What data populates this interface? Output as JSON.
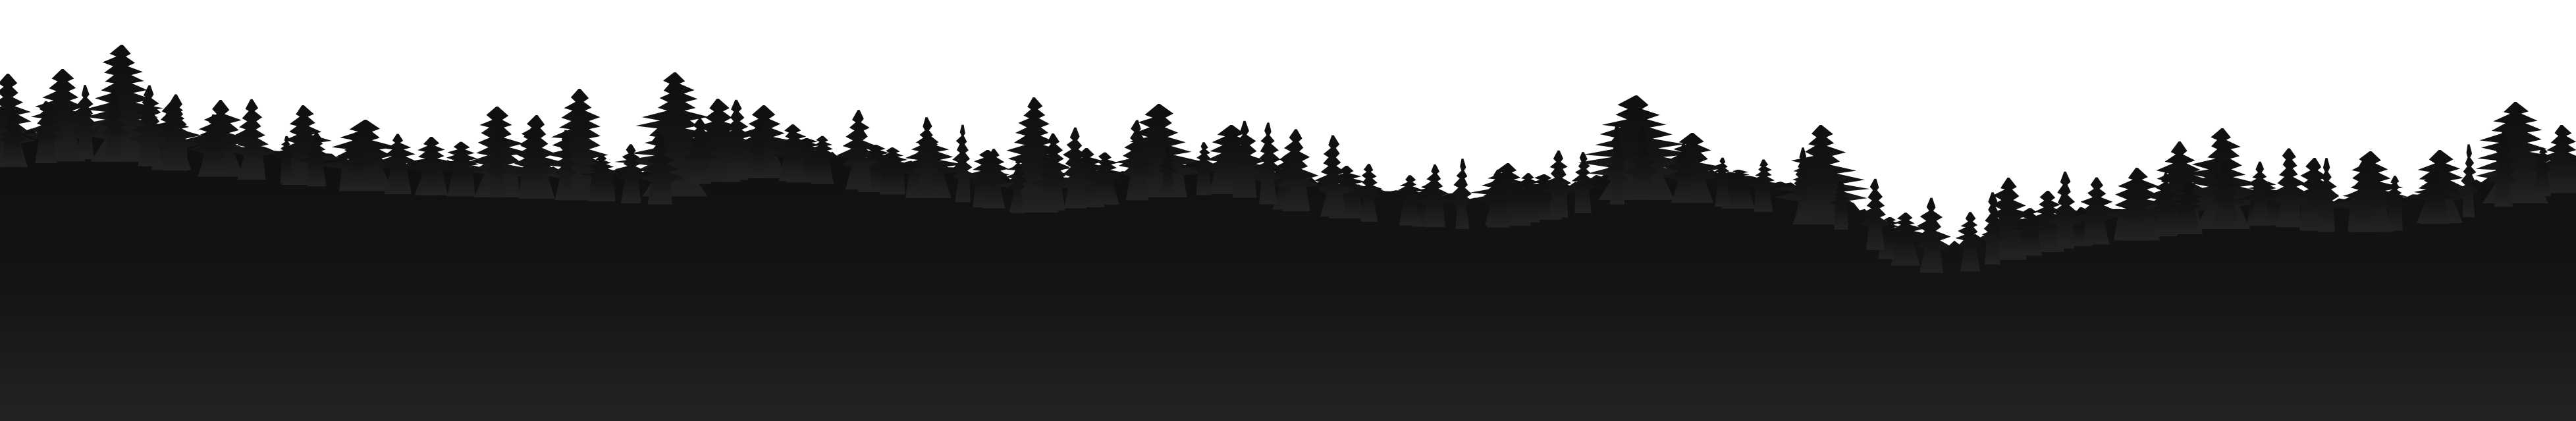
{
  "scene": {
    "subject": "forest-treeline-silhouette",
    "colors": {
      "sky": "#ffffff",
      "forest_top": "#0f0f10",
      "forest_bottom": "#232323"
    }
  }
}
